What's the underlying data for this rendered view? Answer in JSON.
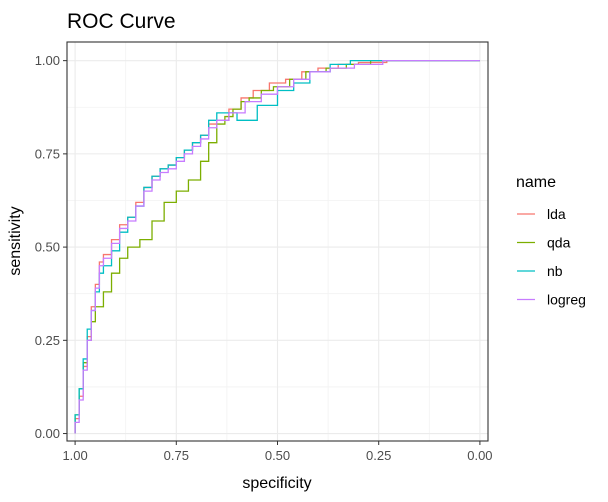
{
  "chart_data": {
    "type": "line",
    "title": "ROC Curve",
    "xlabel": "specificity",
    "ylabel": "sensitivity",
    "x_reversed": true,
    "xlim": [
      1.02,
      -0.02
    ],
    "ylim": [
      -0.02,
      1.05
    ],
    "x_ticks": [
      1.0,
      0.75,
      0.5,
      0.25,
      0.0
    ],
    "x_tick_labels": [
      "1.00",
      "0.75",
      "0.50",
      "0.25",
      "0.00"
    ],
    "y_ticks": [
      0.0,
      0.25,
      0.5,
      0.75,
      1.0
    ],
    "y_tick_labels": [
      "0.00",
      "0.25",
      "0.50",
      "0.75",
      "1.00"
    ],
    "grid": true,
    "legend_title": "name",
    "legend_position": "right",
    "series": [
      {
        "name": "lda",
        "color": "#F8766D",
        "x": [
          1.0,
          1.0,
          0.99,
          0.99,
          0.98,
          0.98,
          0.97,
          0.97,
          0.96,
          0.96,
          0.95,
          0.95,
          0.94,
          0.94,
          0.93,
          0.93,
          0.91,
          0.91,
          0.89,
          0.89,
          0.87,
          0.87,
          0.85,
          0.85,
          0.83,
          0.83,
          0.81,
          0.81,
          0.79,
          0.79,
          0.77,
          0.77,
          0.75,
          0.75,
          0.73,
          0.73,
          0.71,
          0.71,
          0.69,
          0.69,
          0.67,
          0.67,
          0.65,
          0.65,
          0.62,
          0.62,
          0.59,
          0.59,
          0.56,
          0.56,
          0.52,
          0.52,
          0.48,
          0.48,
          0.44,
          0.44,
          0.4,
          0.4,
          0.35,
          0.35,
          0.3,
          0.3,
          0.23,
          0.23,
          0.0
        ],
        "y": [
          0.0,
          0.04,
          0.04,
          0.1,
          0.1,
          0.18,
          0.18,
          0.26,
          0.26,
          0.34,
          0.34,
          0.4,
          0.4,
          0.46,
          0.46,
          0.48,
          0.48,
          0.52,
          0.52,
          0.56,
          0.56,
          0.58,
          0.58,
          0.62,
          0.62,
          0.66,
          0.66,
          0.69,
          0.69,
          0.71,
          0.71,
          0.72,
          0.72,
          0.74,
          0.74,
          0.76,
          0.76,
          0.78,
          0.78,
          0.8,
          0.8,
          0.83,
          0.83,
          0.84,
          0.84,
          0.87,
          0.87,
          0.9,
          0.9,
          0.92,
          0.92,
          0.94,
          0.94,
          0.95,
          0.95,
          0.97,
          0.97,
          0.98,
          0.98,
          0.99,
          0.99,
          0.995,
          0.995,
          1.0,
          1.0
        ]
      },
      {
        "name": "qda",
        "color": "#7CAE00",
        "x": [
          1.0,
          1.0,
          0.99,
          0.99,
          0.98,
          0.98,
          0.97,
          0.97,
          0.96,
          0.96,
          0.95,
          0.95,
          0.93,
          0.93,
          0.91,
          0.91,
          0.89,
          0.89,
          0.87,
          0.87,
          0.84,
          0.84,
          0.81,
          0.81,
          0.78,
          0.78,
          0.75,
          0.75,
          0.72,
          0.72,
          0.69,
          0.69,
          0.67,
          0.67,
          0.65,
          0.65,
          0.63,
          0.63,
          0.61,
          0.61,
          0.59,
          0.59,
          0.57,
          0.57,
          0.54,
          0.54,
          0.51,
          0.51,
          0.47,
          0.47,
          0.43,
          0.43,
          0.38,
          0.38,
          0.33,
          0.33,
          0.27,
          0.27,
          0.0
        ],
        "y": [
          0.0,
          0.05,
          0.05,
          0.12,
          0.12,
          0.19,
          0.19,
          0.25,
          0.25,
          0.3,
          0.3,
          0.34,
          0.34,
          0.38,
          0.38,
          0.43,
          0.43,
          0.47,
          0.47,
          0.5,
          0.5,
          0.52,
          0.52,
          0.57,
          0.57,
          0.62,
          0.62,
          0.65,
          0.65,
          0.68,
          0.68,
          0.73,
          0.73,
          0.78,
          0.78,
          0.83,
          0.83,
          0.85,
          0.85,
          0.87,
          0.87,
          0.89,
          0.89,
          0.9,
          0.9,
          0.92,
          0.92,
          0.93,
          0.93,
          0.95,
          0.95,
          0.97,
          0.97,
          0.98,
          0.98,
          0.99,
          0.99,
          1.0,
          1.0
        ]
      },
      {
        "name": "nb",
        "color": "#00BFC4",
        "x": [
          1.0,
          1.0,
          0.99,
          0.99,
          0.98,
          0.98,
          0.97,
          0.97,
          0.96,
          0.96,
          0.95,
          0.95,
          0.94,
          0.94,
          0.93,
          0.93,
          0.91,
          0.91,
          0.89,
          0.89,
          0.87,
          0.87,
          0.85,
          0.85,
          0.83,
          0.83,
          0.81,
          0.81,
          0.79,
          0.79,
          0.77,
          0.77,
          0.75,
          0.75,
          0.73,
          0.73,
          0.71,
          0.71,
          0.69,
          0.69,
          0.67,
          0.67,
          0.65,
          0.65,
          0.6,
          0.6,
          0.55,
          0.55,
          0.5,
          0.5,
          0.46,
          0.46,
          0.42,
          0.42,
          0.37,
          0.37,
          0.32,
          0.32,
          0.26,
          0.26,
          0.0
        ],
        "y": [
          0.0,
          0.05,
          0.05,
          0.12,
          0.12,
          0.2,
          0.2,
          0.28,
          0.28,
          0.33,
          0.33,
          0.38,
          0.38,
          0.43,
          0.43,
          0.45,
          0.45,
          0.49,
          0.49,
          0.54,
          0.54,
          0.58,
          0.58,
          0.61,
          0.61,
          0.66,
          0.66,
          0.69,
          0.69,
          0.71,
          0.71,
          0.72,
          0.72,
          0.74,
          0.74,
          0.76,
          0.76,
          0.78,
          0.78,
          0.8,
          0.8,
          0.84,
          0.84,
          0.86,
          0.86,
          0.84,
          0.84,
          0.88,
          0.88,
          0.92,
          0.92,
          0.94,
          0.94,
          0.97,
          0.97,
          0.99,
          0.99,
          1.0,
          1.0,
          1.0,
          1.0
        ]
      },
      {
        "name": "logreg",
        "color": "#C77CFF",
        "x": [
          1.0,
          1.0,
          0.99,
          0.99,
          0.98,
          0.98,
          0.97,
          0.97,
          0.96,
          0.96,
          0.95,
          0.95,
          0.94,
          0.94,
          0.93,
          0.93,
          0.91,
          0.91,
          0.89,
          0.89,
          0.87,
          0.87,
          0.85,
          0.85,
          0.83,
          0.83,
          0.81,
          0.81,
          0.79,
          0.79,
          0.77,
          0.77,
          0.75,
          0.75,
          0.73,
          0.73,
          0.71,
          0.71,
          0.69,
          0.69,
          0.67,
          0.67,
          0.65,
          0.65,
          0.62,
          0.62,
          0.58,
          0.58,
          0.54,
          0.54,
          0.5,
          0.5,
          0.46,
          0.46,
          0.42,
          0.42,
          0.37,
          0.37,
          0.31,
          0.31,
          0.24,
          0.24,
          0.0
        ],
        "y": [
          0.0,
          0.03,
          0.03,
          0.09,
          0.09,
          0.17,
          0.17,
          0.25,
          0.25,
          0.33,
          0.33,
          0.39,
          0.39,
          0.45,
          0.45,
          0.47,
          0.47,
          0.51,
          0.51,
          0.55,
          0.55,
          0.57,
          0.57,
          0.61,
          0.61,
          0.65,
          0.65,
          0.68,
          0.68,
          0.7,
          0.7,
          0.71,
          0.71,
          0.73,
          0.73,
          0.75,
          0.75,
          0.77,
          0.77,
          0.79,
          0.79,
          0.82,
          0.82,
          0.84,
          0.84,
          0.86,
          0.86,
          0.89,
          0.89,
          0.91,
          0.91,
          0.93,
          0.93,
          0.95,
          0.95,
          0.97,
          0.97,
          0.98,
          0.98,
          0.99,
          0.99,
          1.0,
          1.0
        ]
      }
    ]
  }
}
